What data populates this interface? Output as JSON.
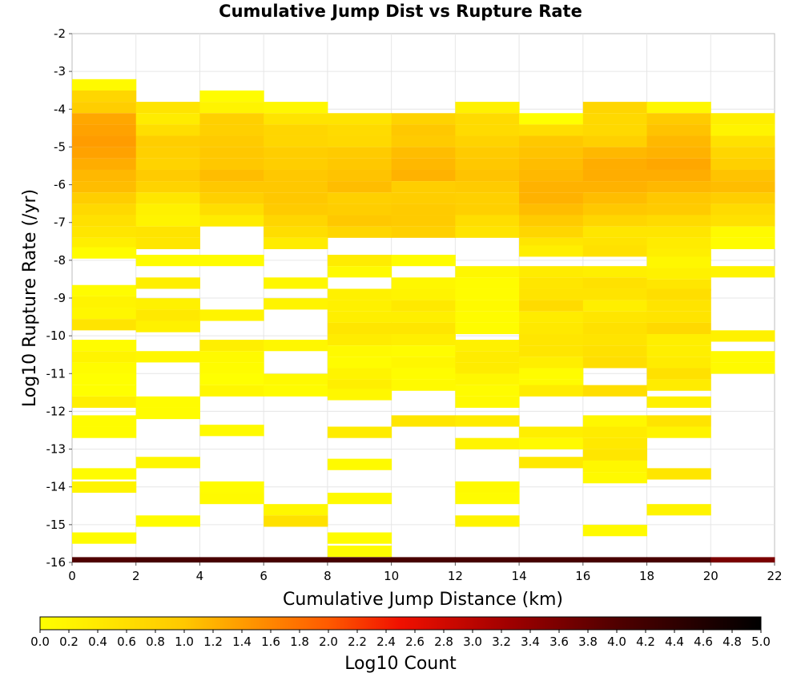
{
  "chart_data": {
    "type": "heatmap",
    "title": "Cumulative Jump Dist vs Rupture Rate",
    "xlabel": "Cumulative Jump Distance (km)",
    "ylabel": "Log10 Rupture Rate (/yr)",
    "xlim": [
      0,
      22
    ],
    "ylim": [
      -16,
      -2
    ],
    "x_ticks": [
      0,
      2,
      4,
      6,
      8,
      10,
      12,
      14,
      16,
      18,
      20,
      22
    ],
    "y_ticks": [
      -2,
      -3,
      -4,
      -5,
      -6,
      -7,
      -8,
      -9,
      -10,
      -11,
      -12,
      -13,
      -14,
      -15,
      -16
    ],
    "x_bin_width": 2,
    "y_bin_height": 0.29,
    "grid": true,
    "colorbar": {
      "label": "Log10 Count",
      "min": 0.0,
      "max": 5.0,
      "ticks": [
        "0.0",
        "0.2",
        "0.4",
        "0.6",
        "0.8",
        "1.0",
        "1.2",
        "1.4",
        "1.6",
        "1.8",
        "2.0",
        "2.2",
        "2.4",
        "2.6",
        "2.8",
        "3.0",
        "3.2",
        "3.4",
        "3.6",
        "3.8",
        "4.0",
        "4.2",
        "4.4",
        "4.6",
        "4.8",
        "5.0"
      ]
    },
    "columns": [
      {
        "x": 0,
        "cells": [
          [
            -3.35,
            0.1
          ],
          [
            -3.65,
            0.75
          ],
          [
            -3.95,
            0.9
          ],
          [
            -4.25,
            1.3
          ],
          [
            -4.55,
            1.35
          ],
          [
            -4.85,
            1.4
          ],
          [
            -5.15,
            1.35
          ],
          [
            -5.45,
            1.25
          ],
          [
            -5.75,
            1.15
          ],
          [
            -6.05,
            1.1
          ],
          [
            -6.35,
            0.9
          ],
          [
            -6.65,
            0.7
          ],
          [
            -6.95,
            0.55
          ],
          [
            -7.25,
            0.45
          ],
          [
            -7.55,
            0.3
          ],
          [
            -7.8,
            0.05
          ],
          [
            -8.8,
            0.05
          ],
          [
            -9.1,
            0.2
          ],
          [
            -9.4,
            0.15
          ],
          [
            -9.7,
            0.5
          ],
          [
            -10.25,
            0.05
          ],
          [
            -10.55,
            0.2
          ],
          [
            -10.85,
            0.05
          ],
          [
            -11.15,
            0.0
          ],
          [
            -11.45,
            0.0
          ],
          [
            -11.75,
            0.3
          ],
          [
            -12.25,
            0.05
          ],
          [
            -12.55,
            0.05
          ],
          [
            -13.65,
            0.05
          ],
          [
            -14.0,
            0.2
          ],
          [
            -15.35,
            0.05
          ]
        ]
      },
      {
        "x": 2,
        "cells": [
          [
            -3.95,
            0.5
          ],
          [
            -4.25,
            0.35
          ],
          [
            -4.55,
            0.6
          ],
          [
            -4.85,
            0.9
          ],
          [
            -5.15,
            0.85
          ],
          [
            -5.45,
            0.8
          ],
          [
            -5.75,
            0.95
          ],
          [
            -6.05,
            0.8
          ],
          [
            -6.35,
            0.45
          ],
          [
            -6.65,
            0.25
          ],
          [
            -6.95,
            0.2
          ],
          [
            -7.25,
            0.5
          ],
          [
            -7.55,
            0.45
          ],
          [
            -8.0,
            0.05
          ],
          [
            -8.6,
            0.3
          ],
          [
            -9.15,
            0.25
          ],
          [
            -9.45,
            0.4
          ],
          [
            -9.75,
            0.25
          ],
          [
            -10.55,
            0.15
          ],
          [
            -11.75,
            0.05
          ],
          [
            -12.05,
            0.05
          ],
          [
            -13.35,
            0.15
          ],
          [
            -14.9,
            0.05
          ]
        ]
      },
      {
        "x": 4,
        "cells": [
          [
            -3.65,
            0.05
          ],
          [
            -3.95,
            0.2
          ],
          [
            -4.25,
            0.85
          ],
          [
            -4.55,
            0.85
          ],
          [
            -4.85,
            0.95
          ],
          [
            -5.15,
            1.0
          ],
          [
            -5.45,
            1.0
          ],
          [
            -5.75,
            1.1
          ],
          [
            -6.05,
            1.0
          ],
          [
            -6.35,
            0.85
          ],
          [
            -6.65,
            0.6
          ],
          [
            -6.95,
            0.35
          ],
          [
            -8.0,
            0.05
          ],
          [
            -9.45,
            0.2
          ],
          [
            -10.25,
            0.3
          ],
          [
            -10.55,
            0.1
          ],
          [
            -10.85,
            0.05
          ],
          [
            -11.15,
            0.0
          ],
          [
            -11.45,
            0.15
          ],
          [
            -12.5,
            0.1
          ],
          [
            -14.0,
            0.05
          ],
          [
            -14.3,
            0.1
          ]
        ]
      },
      {
        "x": 6,
        "cells": [
          [
            -3.95,
            0.15
          ],
          [
            -4.25,
            0.5
          ],
          [
            -4.55,
            0.75
          ],
          [
            -4.85,
            0.75
          ],
          [
            -5.15,
            0.9
          ],
          [
            -5.45,
            0.9
          ],
          [
            -5.75,
            1.0
          ],
          [
            -6.05,
            1.0
          ],
          [
            -6.35,
            1.0
          ],
          [
            -6.65,
            0.95
          ],
          [
            -6.95,
            0.75
          ],
          [
            -7.25,
            0.6
          ],
          [
            -7.55,
            0.35
          ],
          [
            -8.6,
            0.15
          ],
          [
            -9.15,
            0.2
          ],
          [
            -10.25,
            0.15
          ],
          [
            -11.15,
            0.1
          ],
          [
            -11.45,
            0.05
          ],
          [
            -14.6,
            0.15
          ],
          [
            -14.9,
            0.55
          ]
        ]
      },
      {
        "x": 8,
        "cells": [
          [
            -4.25,
            0.5
          ],
          [
            -4.55,
            0.65
          ],
          [
            -4.85,
            0.7
          ],
          [
            -5.15,
            0.95
          ],
          [
            -5.45,
            1.0
          ],
          [
            -5.75,
            1.05
          ],
          [
            -6.05,
            1.1
          ],
          [
            -6.35,
            0.85
          ],
          [
            -6.65,
            0.9
          ],
          [
            -6.95,
            1.0
          ],
          [
            -7.25,
            0.75
          ],
          [
            -8.0,
            0.35
          ],
          [
            -8.3,
            0.1
          ],
          [
            -8.9,
            0.25
          ],
          [
            -9.2,
            0.25
          ],
          [
            -9.5,
            0.3
          ],
          [
            -9.8,
            0.45
          ],
          [
            -10.1,
            0.35
          ],
          [
            -10.4,
            0.1
          ],
          [
            -10.7,
            0.05
          ],
          [
            -11.0,
            0.2
          ],
          [
            -11.3,
            0.3
          ],
          [
            -11.55,
            0.15
          ],
          [
            -12.55,
            0.35
          ],
          [
            -13.4,
            0.1
          ],
          [
            -14.3,
            0.1
          ],
          [
            -15.35,
            0.05
          ],
          [
            -15.7,
            0.05
          ]
        ]
      },
      {
        "x": 10,
        "cells": [
          [
            -4.25,
            0.8
          ],
          [
            -4.55,
            1.0
          ],
          [
            -4.85,
            0.95
          ],
          [
            -5.15,
            1.1
          ],
          [
            -5.45,
            1.15
          ],
          [
            -5.75,
            1.2
          ],
          [
            -6.05,
            0.9
          ],
          [
            -6.35,
            0.9
          ],
          [
            -6.65,
            0.95
          ],
          [
            -6.95,
            0.95
          ],
          [
            -7.25,
            0.85
          ],
          [
            -8.0,
            0.05
          ],
          [
            -8.6,
            0.15
          ],
          [
            -8.9,
            0.2
          ],
          [
            -9.2,
            0.4
          ],
          [
            -9.5,
            0.3
          ],
          [
            -9.8,
            0.45
          ],
          [
            -10.1,
            0.3
          ],
          [
            -10.4,
            0.05
          ],
          [
            -10.7,
            0.15
          ],
          [
            -11.0,
            0.05
          ],
          [
            -11.3,
            0.1
          ],
          [
            -12.25,
            0.45
          ]
        ]
      },
      {
        "x": 12,
        "cells": [
          [
            -3.95,
            0.25
          ],
          [
            -4.25,
            0.65
          ],
          [
            -4.55,
            0.65
          ],
          [
            -4.85,
            0.8
          ],
          [
            -5.15,
            0.95
          ],
          [
            -5.45,
            1.0
          ],
          [
            -5.75,
            1.05
          ],
          [
            -6.05,
            0.95
          ],
          [
            -6.35,
            0.85
          ],
          [
            -6.65,
            0.85
          ],
          [
            -6.95,
            0.6
          ],
          [
            -7.25,
            0.5
          ],
          [
            -8.3,
            0.15
          ],
          [
            -8.6,
            0.05
          ],
          [
            -8.9,
            0.05
          ],
          [
            -9.2,
            0.1
          ],
          [
            -9.5,
            0.05
          ],
          [
            -9.8,
            0.05
          ],
          [
            -10.25,
            0.25
          ],
          [
            -10.55,
            0.35
          ],
          [
            -10.85,
            0.35
          ],
          [
            -11.15,
            0.15
          ],
          [
            -11.45,
            0.05
          ],
          [
            -11.75,
            0.1
          ],
          [
            -12.25,
            0.35
          ],
          [
            -12.85,
            0.2
          ],
          [
            -14.0,
            0.1
          ],
          [
            -14.3,
            0.05
          ],
          [
            -14.9,
            0.2
          ]
        ]
      },
      {
        "x": 14,
        "cells": [
          [
            -4.25,
            0.0
          ],
          [
            -4.55,
            0.6
          ],
          [
            -4.85,
            1.0
          ],
          [
            -5.15,
            1.05
          ],
          [
            -5.45,
            1.1
          ],
          [
            -5.75,
            1.15
          ],
          [
            -6.05,
            1.2
          ],
          [
            -6.35,
            1.2
          ],
          [
            -6.65,
            1.1
          ],
          [
            -6.95,
            0.95
          ],
          [
            -7.25,
            0.75
          ],
          [
            -7.55,
            0.45
          ],
          [
            -7.75,
            0.3
          ],
          [
            -8.3,
            0.35
          ],
          [
            -8.6,
            0.45
          ],
          [
            -8.9,
            0.5
          ],
          [
            -9.2,
            0.65
          ],
          [
            -9.5,
            0.35
          ],
          [
            -9.8,
            0.4
          ],
          [
            -10.1,
            0.45
          ],
          [
            -10.4,
            0.45
          ],
          [
            -10.7,
            0.3
          ],
          [
            -11.0,
            0.05
          ],
          [
            -11.3,
            0.05
          ],
          [
            -11.45,
            0.35
          ],
          [
            -12.55,
            0.3
          ],
          [
            -12.85,
            0.1
          ],
          [
            -13.35,
            0.4
          ]
        ]
      },
      {
        "x": 16,
        "cells": [
          [
            -3.95,
            0.75
          ],
          [
            -4.25,
            0.7
          ],
          [
            -4.55,
            0.7
          ],
          [
            -4.85,
            0.85
          ],
          [
            -5.15,
            1.15
          ],
          [
            -5.45,
            1.25
          ],
          [
            -5.75,
            1.25
          ],
          [
            -6.05,
            1.2
          ],
          [
            -6.35,
            1.1
          ],
          [
            -6.65,
            1.0
          ],
          [
            -6.95,
            0.75
          ],
          [
            -7.25,
            0.45
          ],
          [
            -7.55,
            0.5
          ],
          [
            -7.75,
            0.55
          ],
          [
            -8.3,
            0.3
          ],
          [
            -8.6,
            0.55
          ],
          [
            -8.9,
            0.5
          ],
          [
            -9.2,
            0.3
          ],
          [
            -9.5,
            0.45
          ],
          [
            -9.8,
            0.55
          ],
          [
            -10.1,
            0.5
          ],
          [
            -10.4,
            0.55
          ],
          [
            -10.7,
            0.6
          ],
          [
            -11.45,
            0.6
          ],
          [
            -12.25,
            0.15
          ],
          [
            -12.55,
            0.35
          ],
          [
            -12.85,
            0.4
          ],
          [
            -13.15,
            0.45
          ],
          [
            -13.45,
            0.15
          ],
          [
            -13.75,
            0.1
          ],
          [
            -15.15,
            0.1
          ]
        ]
      },
      {
        "x": 18,
        "cells": [
          [
            -3.95,
            0.15
          ],
          [
            -4.25,
            0.95
          ],
          [
            -4.55,
            1.05
          ],
          [
            -4.85,
            1.15
          ],
          [
            -5.15,
            1.2
          ],
          [
            -5.45,
            1.3
          ],
          [
            -5.75,
            1.25
          ],
          [
            -6.05,
            1.15
          ],
          [
            -6.35,
            1.0
          ],
          [
            -6.65,
            0.95
          ],
          [
            -6.95,
            0.65
          ],
          [
            -7.25,
            0.45
          ],
          [
            -7.55,
            0.35
          ],
          [
            -7.85,
            0.3
          ],
          [
            -8.05,
            0.15
          ],
          [
            -8.35,
            0.25
          ],
          [
            -8.65,
            0.45
          ],
          [
            -8.9,
            0.6
          ],
          [
            -9.2,
            0.5
          ],
          [
            -9.5,
            0.5
          ],
          [
            -9.8,
            0.7
          ],
          [
            -10.1,
            0.3
          ],
          [
            -10.4,
            0.3
          ],
          [
            -10.7,
            0.35
          ],
          [
            -11.0,
            0.55
          ],
          [
            -11.3,
            0.35
          ],
          [
            -11.75,
            0.25
          ],
          [
            -12.25,
            0.5
          ],
          [
            -12.55,
            0.2
          ],
          [
            -13.65,
            0.45
          ],
          [
            -14.6,
            0.2
          ]
        ]
      },
      {
        "x": 20,
        "cells": [
          [
            -4.25,
            0.3
          ],
          [
            -4.55,
            0.2
          ],
          [
            -4.85,
            0.55
          ],
          [
            -5.15,
            0.75
          ],
          [
            -5.45,
            0.85
          ],
          [
            -5.75,
            1.05
          ],
          [
            -6.05,
            1.1
          ],
          [
            -6.35,
            0.9
          ],
          [
            -6.65,
            0.65
          ],
          [
            -6.95,
            0.55
          ],
          [
            -7.25,
            0.1
          ],
          [
            -7.55,
            0.05
          ],
          [
            -8.3,
            0.2
          ],
          [
            -10.0,
            0.25
          ],
          [
            -10.55,
            0.1
          ],
          [
            -10.85,
            0.1
          ]
        ]
      }
    ],
    "bottom_row": {
      "y": -15.93,
      "values": [
        4.0,
        4.1,
        4.1,
        4.1,
        4.1,
        4.1,
        4.1,
        4.1,
        4.1,
        4.1,
        3.6
      ]
    }
  }
}
